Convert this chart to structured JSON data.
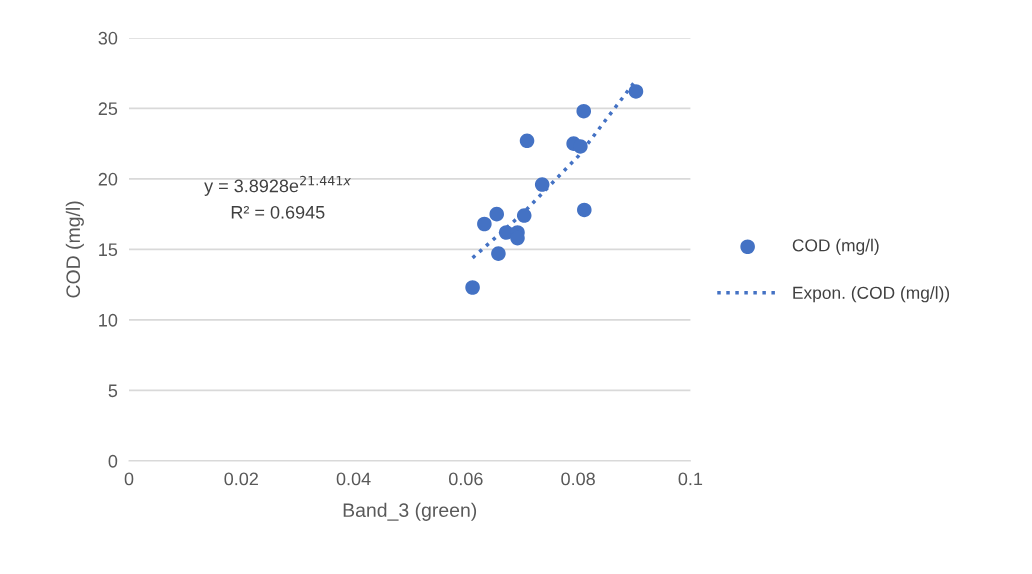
{
  "chart_data": {
    "type": "scatter",
    "xlabel": "Band_3 (green)",
    "ylabel": "COD (mg/l)",
    "xlim": [
      0,
      0.1
    ],
    "ylim": [
      0,
      30
    ],
    "xticks": [
      0,
      0.02,
      0.04,
      0.06,
      0.08,
      0.1
    ],
    "yticks": [
      0,
      5,
      10,
      15,
      20,
      25,
      30
    ],
    "grid": "y",
    "legend": "right",
    "marker": "circle",
    "annotations": [
      "y = 3.8928e$^{21.441x}$",
      "R² = 0.6945"
    ],
    "series": [
      {
        "name": "COD (mg/l)",
        "color": "#4472c4",
        "x": [
          0.0903,
          0.081,
          0.0709,
          0.0792,
          0.0804,
          0.0736,
          0.0811,
          0.0655,
          0.0704,
          0.0633,
          0.0672,
          0.0692,
          0.0692,
          0.0658,
          0.0612
        ],
        "values": [
          26.2,
          24.8,
          22.7,
          22.5,
          22.3,
          19.6,
          17.8,
          17.5,
          17.4,
          16.8,
          16.2,
          16.2,
          15.8,
          14.7,
          12.3
        ]
      },
      {
        "name": "Expon. (COD (mg/l))",
        "type": "line",
        "line_style": "dotted",
        "marker": "none",
        "color": "#4472c4",
        "x": [
          0.0612,
          0.07,
          0.08,
          0.0903
        ],
        "values": [
          14.4,
          17.5,
          21.6,
          27.0
        ]
      }
    ]
  }
}
